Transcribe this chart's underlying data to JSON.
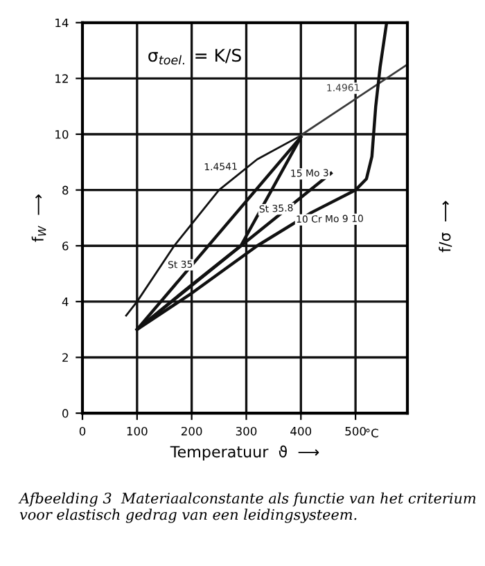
{
  "chart_data": {
    "type": "line",
    "xlabel": "Temperatuur  ϑ  ⟶",
    "ylabel": "f$_{W}$  ⟶",
    "xlim": [
      0,
      595
    ],
    "ylim": [
      0,
      14
    ],
    "xticks": [
      0,
      100,
      200,
      300,
      400,
      500
    ],
    "yticks": [
      0,
      2,
      4,
      6,
      8,
      10,
      12,
      14
    ],
    "grid": true,
    "marker": "none",
    "line_style": "solid",
    "annotations": [
      "σ$_{toel.}$ = K/S",
      "°C",
      "f/σ  ⟶",
      "Afbeelding 3  Materiaalconstante als functie van het criterium voor elastisch gedrag van een leidingsysteem."
    ],
    "series": [
      {
        "name": "1.4541",
        "color": "#111111",
        "x": [
          80,
          100,
          168,
          250,
          320,
          395
        ],
        "values": [
          3.5,
          4.0,
          6.0,
          8.0,
          9.1,
          9.9
        ]
      },
      {
        "name": "1.4961",
        "color": "#3a3a3a",
        "x": [
          395,
          595
        ],
        "values": [
          9.9,
          12.5
        ]
      },
      {
        "name": "St 35",
        "color": "#111111",
        "x": [
          100,
          400
        ],
        "values": [
          3.0,
          9.9
        ]
      },
      {
        "name": "St 35.8",
        "color": "#111111",
        "x": [
          100,
          200,
          290,
          400
        ],
        "values": [
          3.0,
          4.6,
          6.0,
          9.9
        ]
      },
      {
        "name": "15 Mo 3",
        "color": "#111111",
        "x": [
          100,
          455
        ],
        "values": [
          3.0,
          8.6
        ]
      },
      {
        "name": "10 Cr Mo 9 10",
        "color": "#111111",
        "x": [
          100,
          200,
          320,
          420,
          500,
          520,
          530,
          537,
          545,
          557
        ],
        "values": [
          3.0,
          4.3,
          6.0,
          7.2,
          8.0,
          8.4,
          9.2,
          11.0,
          12.4,
          14.0
        ]
      }
    ]
  }
}
